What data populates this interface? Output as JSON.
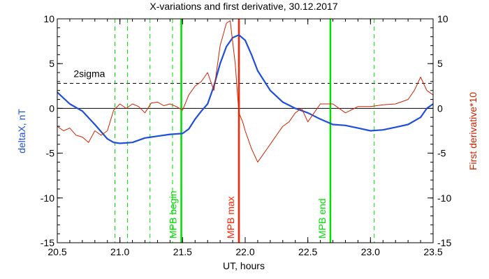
{
  "chart_data": {
    "type": "line",
    "title": "X-variations and first derivative, 30.12.2017",
    "xlabel": "UT, hours",
    "ylabel_left": "deltaX, nT",
    "ylabel_right": "First derivative*10",
    "xlim": [
      20.5,
      23.5
    ],
    "ylim": [
      -15,
      10
    ],
    "x_ticks": [
      "20.5",
      "21.0",
      "21.5",
      "22.0",
      "22.5",
      "23.0",
      "23.5"
    ],
    "y_ticks": [
      "-15",
      "-10",
      "-5",
      "0",
      "5",
      "10"
    ],
    "colors": {
      "deltaX": "#1f4fd8",
      "derivative": "#cc2200",
      "mpb_lines": "#00dd00",
      "mpb_max": "#ff2200",
      "sigma": "#000000"
    },
    "series": [
      {
        "key": "deltaX",
        "x": [
          20.5,
          20.6,
          20.7,
          20.8,
          20.9,
          20.95,
          21.0,
          21.1,
          21.2,
          21.25,
          21.3,
          21.4,
          21.45,
          21.5,
          21.55,
          21.6,
          21.65,
          21.7,
          21.75,
          21.8,
          21.85,
          21.9,
          21.95,
          22.0,
          22.05,
          22.1,
          22.2,
          22.3,
          22.4,
          22.5,
          22.6,
          22.7,
          22.8,
          22.9,
          23.0,
          23.1,
          23.2,
          23.3,
          23.4,
          23.45,
          23.5
        ],
        "values": [
          1.8,
          0.5,
          -0.3,
          -1.8,
          -3.4,
          -3.8,
          -3.9,
          -3.8,
          -3.3,
          -3.2,
          -3.1,
          -2.9,
          -2.85,
          -2.8,
          -2.3,
          -1.2,
          -0.3,
          0.5,
          2.5,
          5.0,
          6.9,
          7.9,
          8.2,
          7.6,
          6.0,
          4.2,
          2.0,
          0.7,
          0.0,
          -0.5,
          -1.2,
          -1.8,
          -1.9,
          -2.2,
          -2.5,
          -2.4,
          -2.1,
          -1.8,
          -1.0,
          0.0,
          0.5
        ]
      },
      {
        "key": "derivative",
        "x": [
          20.5,
          20.55,
          20.6,
          20.65,
          20.7,
          20.75,
          20.8,
          20.85,
          20.9,
          20.95,
          21.0,
          21.05,
          21.1,
          21.15,
          21.2,
          21.25,
          21.3,
          21.35,
          21.4,
          21.45,
          21.5,
          21.55,
          21.6,
          21.65,
          21.7,
          21.75,
          21.8,
          21.85,
          21.88,
          21.92,
          21.95,
          21.98,
          22.0,
          22.05,
          22.1,
          22.15,
          22.2,
          22.25,
          22.3,
          22.35,
          22.4,
          22.45,
          22.5,
          22.55,
          22.6,
          22.7,
          22.8,
          22.9,
          23.0,
          23.1,
          23.2,
          23.3,
          23.35,
          23.4,
          23.45,
          23.5
        ],
        "values": [
          -2.0,
          -2.5,
          -2.2,
          -3.0,
          -3.2,
          -3.8,
          -2.5,
          -3.0,
          -2.5,
          -0.2,
          0.5,
          0.0,
          0.5,
          0.2,
          -0.5,
          0.6,
          0.7,
          0.3,
          0.5,
          0.2,
          -0.2,
          1.5,
          2.5,
          3.0,
          4.0,
          2.0,
          7.0,
          9.5,
          9.8,
          5.0,
          -0.5,
          -1.5,
          -2.5,
          -4.5,
          -6.0,
          -5.0,
          -4.0,
          -3.0,
          -2.0,
          -1.5,
          -0.5,
          0.0,
          -1.5,
          -0.5,
          0.5,
          0.5,
          -0.5,
          0.2,
          0.2,
          0.4,
          0.5,
          1.0,
          2.0,
          3.5,
          2.0,
          1.5
        ]
      }
    ],
    "annotations": {
      "sigma": {
        "y": 2.8,
        "label": "2sigma"
      },
      "dashed_verticals": [
        20.96,
        21.06,
        21.24,
        21.42,
        23.03
      ],
      "solid_verticals": [
        {
          "x": 21.49,
          "label": "MPB begin",
          "color": "#00dd00"
        },
        {
          "x": 21.95,
          "label": "MPB max",
          "color": "#ff2200"
        },
        {
          "x": 22.68,
          "label": "MPB end",
          "color": "#00dd00"
        }
      ]
    },
    "grid": false
  }
}
